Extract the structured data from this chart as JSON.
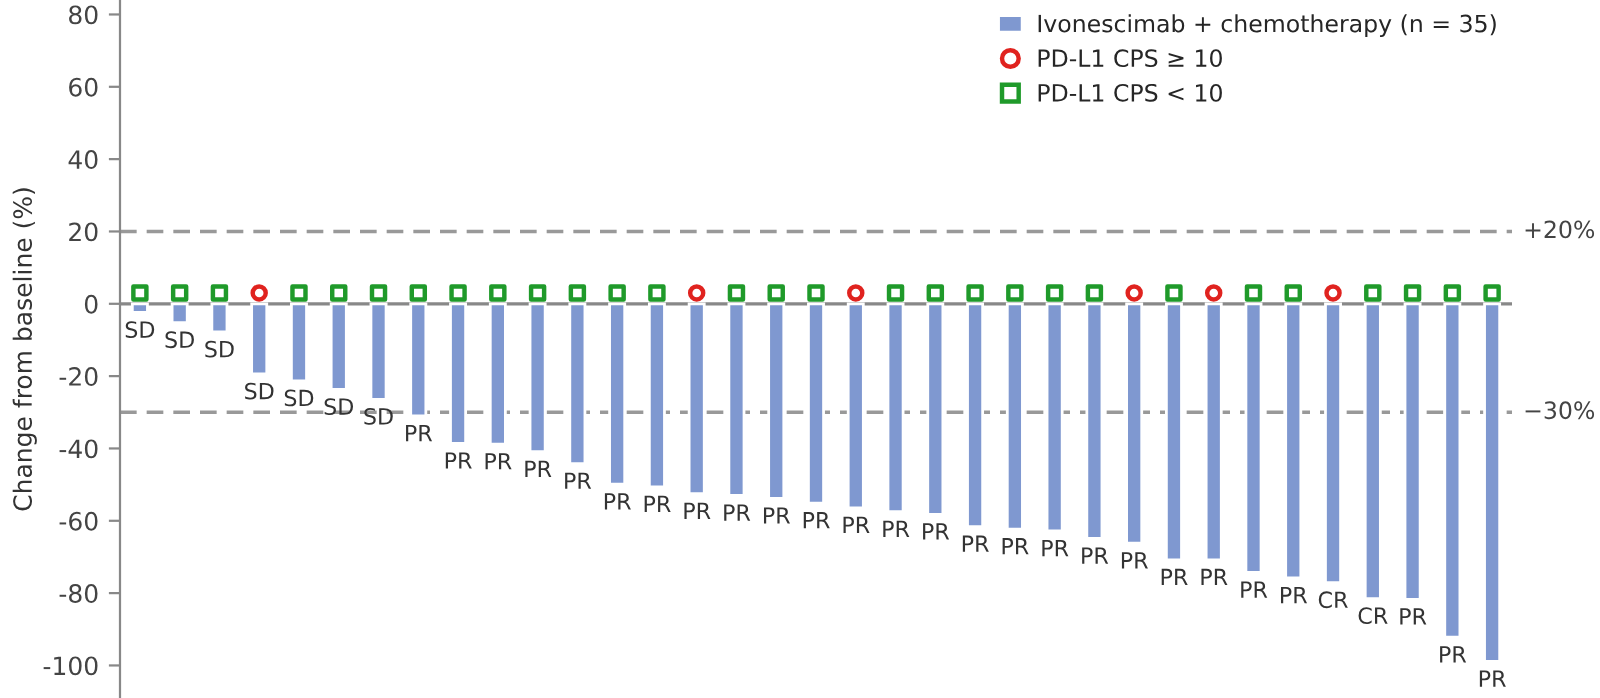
{
  "chart_data": {
    "type": "bar",
    "ylabel": "Change from baseline (%)",
    "categories": [
      null,
      null,
      null,
      null,
      null,
      null,
      null,
      null,
      null,
      null,
      null,
      null,
      null,
      null,
      null,
      null,
      null,
      null,
      null,
      null,
      null,
      null,
      null,
      null,
      null,
      null,
      null,
      null,
      null,
      null,
      null,
      null,
      null,
      null,
      null
    ],
    "series": [
      {
        "name": "Ivonescimab + chemotherapy (n = 35)",
        "color": "#7f98d0",
        "values": [
          -2.4,
          -5.2,
          -7.8,
          -19.4,
          -21.3,
          -23.7,
          -26.4,
          -31,
          -38.6,
          -38.8,
          -40.9,
          -44.2,
          -49.9,
          -50.6,
          -52.5,
          -53,
          -53.8,
          -55.1,
          -56.4,
          -57.5,
          -58.2,
          -61.6,
          -62.3,
          -62.8,
          -64.9,
          -66.2,
          -70.8,
          -70.8,
          -74.3,
          -75.8,
          -77.1,
          -81.5,
          -81.7,
          -92.2,
          -98.9
        ],
        "value_labels": [
          "SD",
          "SD",
          "SD",
          "SD",
          "SD",
          "SD",
          "SD",
          "PR",
          "PR",
          "PR",
          "PR",
          "PR",
          "PR",
          "PR",
          "PR",
          "PR",
          "PR",
          "PR",
          "PR",
          "PR",
          "PR",
          "PR",
          "PR",
          "PR",
          "PR",
          "PR",
          "PR",
          "PR",
          "PR",
          "PR",
          "CR",
          "CR",
          "PR",
          "PR",
          "PR"
        ]
      },
      {
        "name": "PD-L1 CPS ≥ 10",
        "type": "scatter",
        "marker": "circle",
        "color": "#e0231f",
        "values": [
          null,
          null,
          null,
          3,
          null,
          null,
          null,
          null,
          null,
          null,
          null,
          null,
          null,
          null,
          3,
          null,
          null,
          null,
          3,
          null,
          null,
          null,
          null,
          null,
          null,
          3,
          null,
          3,
          null,
          null,
          3,
          null,
          null,
          null,
          null
        ]
      },
      {
        "name": "PD-L1 CPS < 10",
        "type": "scatter",
        "marker": "square",
        "color": "#1f9a2a",
        "values": [
          3,
          3,
          3,
          null,
          3,
          3,
          3,
          3,
          3,
          3,
          3,
          3,
          3,
          3,
          null,
          3,
          3,
          3,
          null,
          3,
          3,
          3,
          3,
          3,
          3,
          null,
          3,
          null,
          3,
          3,
          null,
          3,
          3,
          3,
          3
        ]
      }
    ],
    "ylim": [
      -109,
      84
    ],
    "yticks": [
      -100,
      -80,
      -60,
      -40,
      -20,
      0,
      20,
      40,
      60,
      80
    ],
    "ref_lines": [
      {
        "axis": "y",
        "value": 20,
        "label": "+20%",
        "line_style": "dashed",
        "color": "#999999"
      },
      {
        "axis": "y",
        "value": -30,
        "label": "−30%",
        "line_style": "dashed",
        "color": "#999999"
      },
      {
        "axis": "y",
        "value": 0,
        "line_style": "solid",
        "color": "#888888"
      }
    ],
    "tick_labels": "y",
    "legend": "top right",
    "grid": false
  }
}
